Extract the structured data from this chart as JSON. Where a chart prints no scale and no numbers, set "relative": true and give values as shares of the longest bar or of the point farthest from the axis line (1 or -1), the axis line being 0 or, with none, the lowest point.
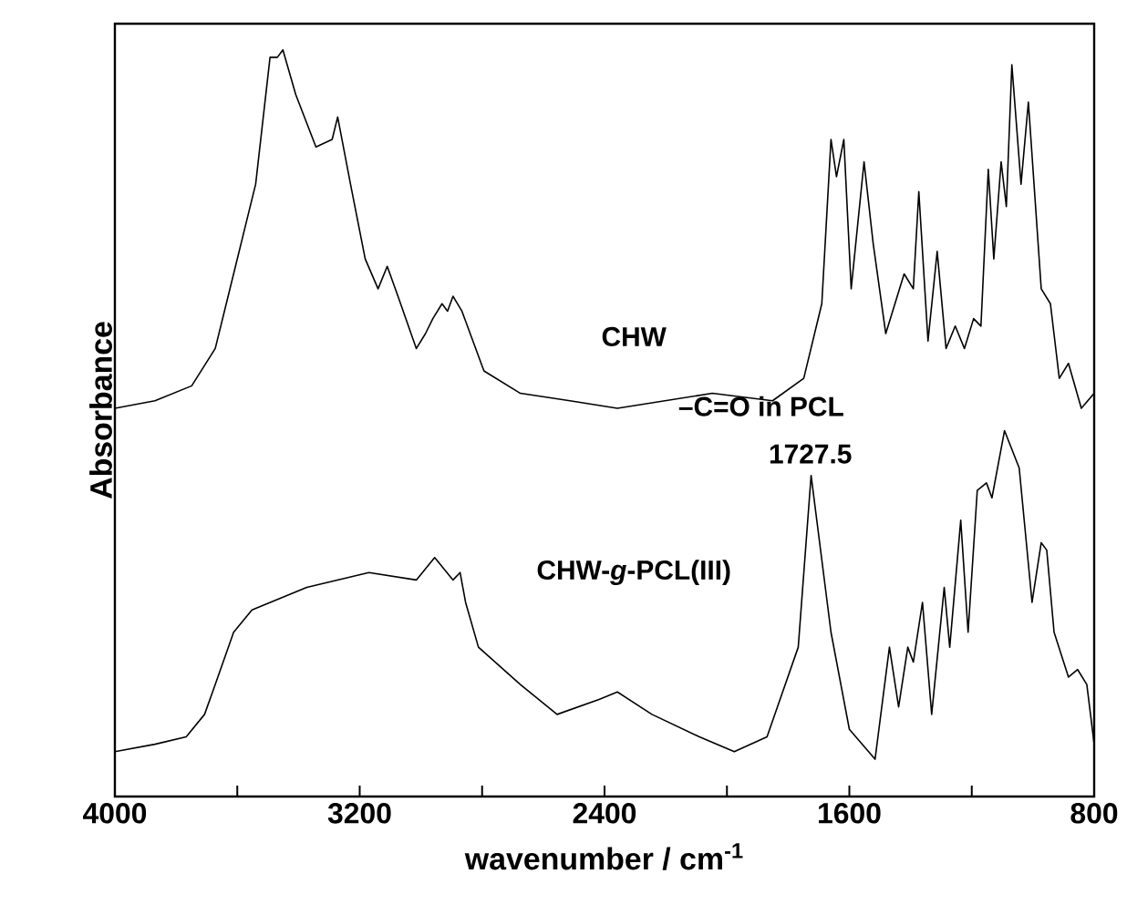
{
  "chart_data": {
    "type": "line",
    "relative": true,
    "xlabel": "wavenumber / cm$^{-1}$",
    "ylabel": "Absorbance",
    "xlim": [
      4000,
      800
    ],
    "xticks": [
      4000,
      {
        "value": 3600,
        "label": null
      },
      3200,
      {
        "value": 2800,
        "label": null
      },
      2400,
      {
        "value": 2000,
        "label": null
      },
      1600,
      {
        "value": 1200,
        "label": null
      },
      800
    ],
    "marker": "none",
    "line_style": "solid",
    "tick_labels": "x",
    "annotations": [
      "–C=O in PCL",
      {
        "text": "1727.5",
        "x": 1727.5,
        "y": 0.43
      }
    ],
    "series": [
      {
        "name": "CHW",
        "color": "#000000",
        "x": [
          4000,
          3869,
          3749,
          3672,
          3612,
          3540,
          3493,
          3469,
          3451,
          3409,
          3343,
          3290,
          3272,
          3230,
          3182,
          3140,
          3110,
          3075,
          3015,
          2985,
          2961,
          2931,
          2913,
          2895,
          2866,
          2794,
          2675,
          2513,
          2358,
          2048,
          1851,
          1749,
          1690,
          1660,
          1642,
          1618,
          1594,
          1552,
          1522,
          1481,
          1421,
          1391,
          1373,
          1343,
          1313,
          1284,
          1254,
          1224,
          1194,
          1170,
          1146,
          1128,
          1104,
          1087,
          1069,
          1039,
          1015,
          973,
          943,
          914,
          884,
          842,
          800
        ],
        "values": [
          0.52,
          0.53,
          0.55,
          0.6,
          0.7,
          0.82,
          0.99,
          0.99,
          1.0,
          0.94,
          0.87,
          0.88,
          0.91,
          0.82,
          0.72,
          0.68,
          0.71,
          0.67,
          0.6,
          0.62,
          0.64,
          0.66,
          0.65,
          0.67,
          0.65,
          0.57,
          0.54,
          0.53,
          0.52,
          0.54,
          0.53,
          0.56,
          0.66,
          0.88,
          0.83,
          0.88,
          0.68,
          0.85,
          0.74,
          0.62,
          0.7,
          0.68,
          0.81,
          0.61,
          0.73,
          0.6,
          0.63,
          0.6,
          0.64,
          0.63,
          0.84,
          0.72,
          0.85,
          0.79,
          0.98,
          0.82,
          0.93,
          0.68,
          0.66,
          0.56,
          0.58,
          0.52,
          0.54
        ]
      },
      {
        "name": "CHW-*g*-PCL(III)",
        "color": "#000000",
        "x": [
          4000,
          3869,
          3767,
          3707,
          3672,
          3612,
          3552,
          3373,
          3170,
          3015,
          2955,
          2895,
          2872,
          2854,
          2812,
          2675,
          2555,
          2418,
          2358,
          2245,
          2090,
          1976,
          1869,
          1767,
          1725,
          1660,
          1600,
          1516,
          1469,
          1439,
          1409,
          1391,
          1361,
          1331,
          1290,
          1272,
          1236,
          1212,
          1182,
          1152,
          1134,
          1093,
          1045,
          1003,
          973,
          955,
          931,
          884,
          854,
          824,
          800
        ],
        "values": [
          0.06,
          0.07,
          0.08,
          0.11,
          0.15,
          0.22,
          0.25,
          0.28,
          0.3,
          0.29,
          0.32,
          0.29,
          0.3,
          0.26,
          0.2,
          0.15,
          0.11,
          0.13,
          0.14,
          0.11,
          0.08,
          0.06,
          0.08,
          0.2,
          0.43,
          0.22,
          0.09,
          0.05,
          0.2,
          0.12,
          0.2,
          0.18,
          0.26,
          0.11,
          0.28,
          0.2,
          0.37,
          0.22,
          0.41,
          0.42,
          0.4,
          0.49,
          0.44,
          0.26,
          0.34,
          0.33,
          0.22,
          0.16,
          0.17,
          0.15,
          0.07
        ]
      }
    ]
  }
}
